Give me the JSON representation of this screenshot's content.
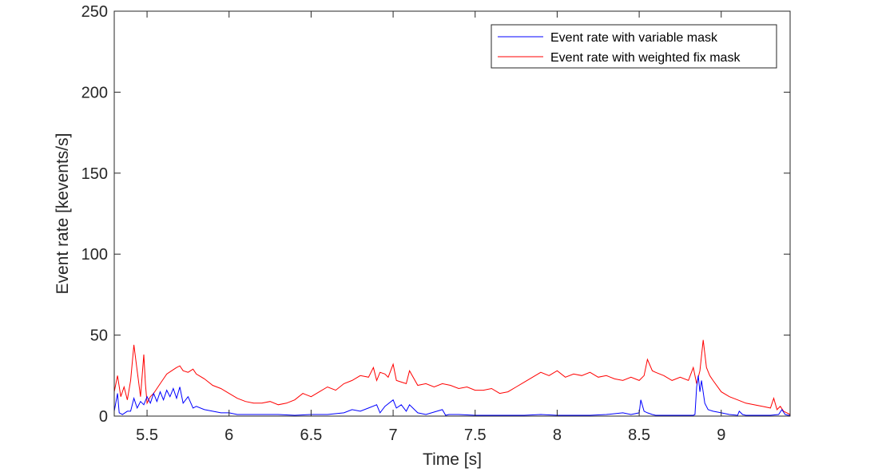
{
  "chart_data": {
    "type": "line",
    "title": "",
    "xlabel": "Time [s]",
    "ylabel": "Event rate [kevents/s]",
    "xlim": [
      5.3,
      9.42
    ],
    "ylim": [
      0,
      250
    ],
    "xticks": [
      5.5,
      6,
      6.5,
      7,
      7.5,
      8,
      8.5,
      9
    ],
    "xtick_labels": [
      "5.5",
      "6",
      "6.5",
      "7",
      "7.5",
      "8",
      "8.5",
      "9"
    ],
    "yticks": [
      0,
      50,
      100,
      150,
      200,
      250
    ],
    "ytick_labels": [
      "0",
      "50",
      "100",
      "150",
      "200",
      "250"
    ],
    "grid": false,
    "legend_position": "top-right",
    "series": [
      {
        "name": "Event rate with weighted fix mask",
        "color": "#ff0000",
        "x": [
          5.3,
          5.32,
          5.34,
          5.36,
          5.38,
          5.4,
          5.42,
          5.44,
          5.46,
          5.48,
          5.49,
          5.5,
          5.52,
          5.54,
          5.56,
          5.58,
          5.6,
          5.62,
          5.65,
          5.68,
          5.7,
          5.72,
          5.75,
          5.78,
          5.8,
          5.85,
          5.9,
          5.95,
          6.0,
          6.05,
          6.1,
          6.15,
          6.2,
          6.25,
          6.3,
          6.35,
          6.4,
          6.45,
          6.5,
          6.55,
          6.6,
          6.65,
          6.7,
          6.75,
          6.8,
          6.85,
          6.88,
          6.9,
          6.92,
          6.95,
          6.97,
          7.0,
          7.02,
          7.05,
          7.08,
          7.1,
          7.15,
          7.2,
          7.25,
          7.3,
          7.35,
          7.4,
          7.45,
          7.5,
          7.55,
          7.6,
          7.65,
          7.7,
          7.75,
          7.8,
          7.85,
          7.9,
          7.95,
          8.0,
          8.05,
          8.1,
          8.15,
          8.2,
          8.25,
          8.3,
          8.35,
          8.4,
          8.45,
          8.5,
          8.53,
          8.55,
          8.58,
          8.6,
          8.65,
          8.7,
          8.75,
          8.8,
          8.83,
          8.85,
          8.87,
          8.89,
          8.91,
          8.93,
          8.95,
          9.0,
          9.05,
          9.1,
          9.15,
          9.2,
          9.25,
          9.3,
          9.32,
          9.34,
          9.36,
          9.38,
          9.4,
          9.42
        ],
        "y": [
          15,
          25,
          12,
          18,
          10,
          22,
          44,
          28,
          12,
          38,
          20,
          8,
          12,
          14,
          17,
          20,
          23,
          26,
          28,
          30,
          31,
          28,
          27,
          29,
          26,
          23,
          19,
          17,
          14,
          11,
          9,
          8,
          8,
          9,
          7,
          8,
          10,
          14,
          12,
          15,
          18,
          16,
          20,
          22,
          25,
          24,
          30,
          22,
          27,
          26,
          24,
          32,
          22,
          21,
          20,
          28,
          19,
          20,
          18,
          20,
          19,
          17,
          18,
          16,
          16,
          17,
          14,
          15,
          18,
          21,
          24,
          27,
          25,
          28,
          24,
          26,
          25,
          27,
          24,
          25,
          23,
          22,
          24,
          22,
          25,
          35,
          28,
          27,
          25,
          22,
          24,
          22,
          30,
          20,
          28,
          47,
          30,
          25,
          22,
          15,
          12,
          10,
          8,
          7,
          6,
          5,
          11,
          4,
          6,
          3,
          2,
          1
        ]
      },
      {
        "name": "Event rate with variable mask",
        "color": "#0000ff",
        "x": [
          5.3,
          5.32,
          5.33,
          5.35,
          5.38,
          5.4,
          5.42,
          5.44,
          5.46,
          5.48,
          5.5,
          5.52,
          5.54,
          5.56,
          5.58,
          5.6,
          5.62,
          5.64,
          5.66,
          5.68,
          5.7,
          5.72,
          5.75,
          5.78,
          5.8,
          5.85,
          5.9,
          5.95,
          6.0,
          6.05,
          6.1,
          6.2,
          6.3,
          6.4,
          6.5,
          6.6,
          6.7,
          6.75,
          6.8,
          6.85,
          6.9,
          6.92,
          6.95,
          7.0,
          7.02,
          7.05,
          7.08,
          7.1,
          7.15,
          7.2,
          7.3,
          7.32,
          7.34,
          7.4,
          7.5,
          7.6,
          7.7,
          7.8,
          7.9,
          8.0,
          8.1,
          8.2,
          8.3,
          8.4,
          8.45,
          8.5,
          8.51,
          8.53,
          8.55,
          8.58,
          8.6,
          8.7,
          8.8,
          8.83,
          8.84,
          8.85,
          8.86,
          8.87,
          8.88,
          8.9,
          8.92,
          8.95,
          9.0,
          9.05,
          9.1,
          9.11,
          9.13,
          9.15,
          9.2,
          9.3,
          9.35,
          9.37,
          9.39,
          9.41,
          9.42
        ],
        "y": [
          3,
          14,
          2,
          1,
          3,
          3,
          11,
          5,
          9,
          7,
          12,
          8,
          14,
          9,
          15,
          10,
          16,
          12,
          17,
          11,
          18,
          8,
          12,
          5,
          6,
          4,
          3,
          2,
          2,
          1,
          1,
          1,
          1,
          0.5,
          1,
          1,
          2,
          4,
          3,
          5,
          7,
          2,
          6,
          10,
          5,
          7,
          3,
          7,
          2,
          1,
          4,
          0.5,
          1,
          1,
          0.5,
          0.5,
          0.5,
          0.5,
          1,
          0.5,
          0.5,
          0.5,
          1,
          2,
          1,
          2,
          10,
          3,
          2,
          1,
          0.5,
          0.5,
          0.5,
          0.5,
          1,
          18,
          25,
          15,
          22,
          8,
          4,
          3,
          2,
          1,
          0.5,
          3,
          1,
          0.5,
          0.5,
          0.5,
          1,
          4,
          1,
          0.5,
          0.5
        ]
      }
    ]
  }
}
